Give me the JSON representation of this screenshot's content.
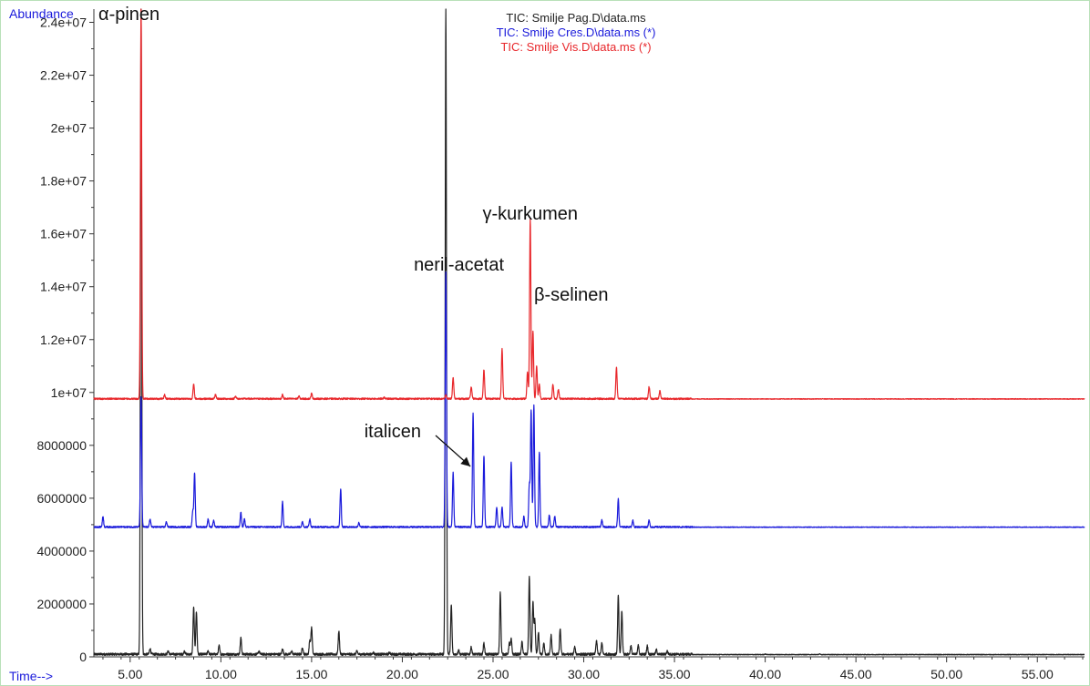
{
  "chart_data": {
    "type": "line",
    "ylabel": "Abundance",
    "xlabel": "Time-->",
    "xlim": [
      3.0,
      57.6
    ],
    "ylim": [
      0,
      24500000
    ],
    "x_ticks": [
      5,
      10,
      15,
      20,
      25,
      30,
      35,
      40,
      45,
      50,
      55
    ],
    "x_tick_labels": [
      "5.00",
      "10.00",
      "15.00",
      "20.00",
      "25.00",
      "30.00",
      "35.00",
      "40.00",
      "45.00",
      "50.00",
      "55.00"
    ],
    "y_ticks": [
      0,
      2000000,
      4000000,
      6000000,
      8000000,
      10000000,
      12000000,
      14000000,
      16000000,
      18000000,
      20000000,
      22000000,
      24000000
    ],
    "y_tick_labels": [
      "0",
      "2000000",
      "4000000",
      "6000000",
      "8000000",
      "1e+07",
      "1.2e+07",
      "1.4e+07",
      "1.6e+07",
      "1.8e+07",
      "2e+07",
      "2.2e+07",
      "2.4e+07"
    ],
    "legend": [
      {
        "name": "TIC: Smilje Pag.D\\data.ms",
        "color": "#222222"
      },
      {
        "name": "TIC: Smilje Cres.D\\data.ms (*)",
        "color": "#1a1adb"
      },
      {
        "name": "TIC: Smilje Vis.D\\data.ms (*)",
        "color": "#e8272b"
      }
    ],
    "series": [
      {
        "name": "TIC: Smilje Pag.D\\data.ms",
        "color": "#222222",
        "baseline": 80000,
        "noise_until": 36.0,
        "peaks": [
          [
            5.6,
            24500000
          ],
          [
            6.1,
            300000
          ],
          [
            7.1,
            200000
          ],
          [
            8.0,
            200000
          ],
          [
            8.5,
            1850000
          ],
          [
            8.65,
            1700000
          ],
          [
            9.3,
            200000
          ],
          [
            9.9,
            400000
          ],
          [
            11.1,
            700000
          ],
          [
            12.1,
            200000
          ],
          [
            13.4,
            300000
          ],
          [
            13.9,
            200000
          ],
          [
            14.5,
            350000
          ],
          [
            14.9,
            600000
          ],
          [
            15.0,
            1100000
          ],
          [
            16.5,
            950000
          ],
          [
            17.5,
            200000
          ],
          [
            18.4,
            150000
          ],
          [
            19.3,
            150000
          ],
          [
            22.4,
            24500000
          ],
          [
            22.7,
            1950000
          ],
          [
            23.1,
            250000
          ],
          [
            23.8,
            350000
          ],
          [
            24.5,
            500000
          ],
          [
            25.4,
            2450000
          ],
          [
            25.9,
            500000
          ],
          [
            26.0,
            650000
          ],
          [
            26.6,
            550000
          ],
          [
            27.0,
            3000000
          ],
          [
            27.2,
            2050000
          ],
          [
            27.3,
            1400000
          ],
          [
            27.5,
            900000
          ],
          [
            27.8,
            500000
          ],
          [
            28.2,
            800000
          ],
          [
            28.7,
            1050000
          ],
          [
            29.5,
            350000
          ],
          [
            30.7,
            600000
          ],
          [
            31.0,
            500000
          ],
          [
            31.9,
            2300000
          ],
          [
            32.1,
            1700000
          ],
          [
            32.6,
            400000
          ],
          [
            33.0,
            450000
          ],
          [
            33.5,
            400000
          ],
          [
            34.0,
            250000
          ],
          [
            34.6,
            200000
          ],
          [
            40.0,
            100000
          ],
          [
            43.0,
            100000
          ]
        ]
      },
      {
        "name": "TIC: Smilje Cres.D\\data.ms (*)",
        "color": "#1a1adb",
        "baseline": 4900000,
        "noise_until": 36.0,
        "peaks": [
          [
            3.5,
            5300000
          ],
          [
            5.6,
            9800000
          ],
          [
            6.1,
            5200000
          ],
          [
            7.0,
            5100000
          ],
          [
            8.45,
            5500000
          ],
          [
            8.55,
            6950000
          ],
          [
            9.3,
            5200000
          ],
          [
            9.6,
            5150000
          ],
          [
            11.1,
            5450000
          ],
          [
            11.3,
            5200000
          ],
          [
            13.4,
            5850000
          ],
          [
            14.5,
            5100000
          ],
          [
            14.9,
            5200000
          ],
          [
            16.6,
            6350000
          ],
          [
            17.6,
            5050000
          ],
          [
            22.4,
            14550000
          ],
          [
            22.8,
            6950000
          ],
          [
            23.9,
            9200000
          ],
          [
            24.5,
            7600000
          ],
          [
            25.2,
            5650000
          ],
          [
            25.5,
            5650000
          ],
          [
            26.0,
            7350000
          ],
          [
            26.7,
            5300000
          ],
          [
            27.0,
            6500000
          ],
          [
            27.1,
            9300000
          ],
          [
            27.25,
            9500000
          ],
          [
            27.55,
            7750000
          ],
          [
            28.1,
            5350000
          ],
          [
            28.4,
            5300000
          ],
          [
            31.0,
            5150000
          ],
          [
            31.9,
            5950000
          ],
          [
            32.7,
            5150000
          ],
          [
            33.6,
            5150000
          ]
        ]
      },
      {
        "name": "TIC: Smilje Vis.D\\data.ms (*)",
        "color": "#e8272b",
        "baseline": 9750000,
        "noise_until": 36.0,
        "peaks": [
          [
            5.6,
            24500000
          ],
          [
            6.9,
            9900000
          ],
          [
            8.5,
            10300000
          ],
          [
            9.7,
            9900000
          ],
          [
            10.8,
            9850000
          ],
          [
            13.4,
            9900000
          ],
          [
            14.3,
            9850000
          ],
          [
            15.0,
            9950000
          ],
          [
            19.0,
            9800000
          ],
          [
            22.4,
            9900000
          ],
          [
            22.8,
            10550000
          ],
          [
            23.8,
            10200000
          ],
          [
            24.5,
            10850000
          ],
          [
            25.5,
            11650000
          ],
          [
            26.9,
            10750000
          ],
          [
            27.05,
            16550000
          ],
          [
            27.2,
            12300000
          ],
          [
            27.4,
            11000000
          ],
          [
            27.55,
            10300000
          ],
          [
            28.3,
            10300000
          ],
          [
            28.6,
            10100000
          ],
          [
            31.8,
            10950000
          ],
          [
            33.6,
            10200000
          ],
          [
            34.2,
            10050000
          ]
        ]
      }
    ],
    "annotations": [
      {
        "text": "α-pinen",
        "x": 5.6
      },
      {
        "text": "neril-acetat",
        "x": 22.4
      },
      {
        "text": "γ-kurkumen",
        "x": 27.05
      },
      {
        "text": "β-selinen",
        "x": 27.8
      },
      {
        "text": "italicen",
        "x": 23.9
      }
    ]
  }
}
